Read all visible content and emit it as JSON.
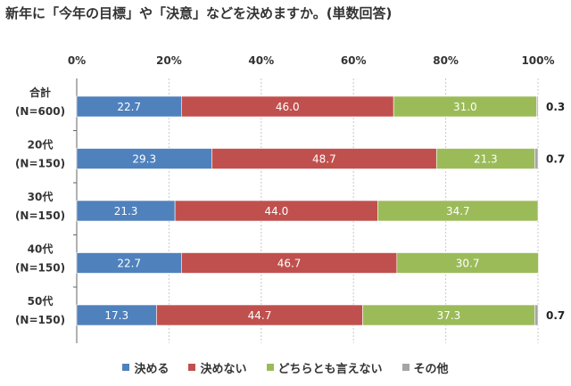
{
  "chart_data": {
    "type": "bar",
    "orientation": "horizontal",
    "stacked": true,
    "percent": true,
    "title": "新年に「今年の目標」や「決意」などを決めますか。(単数回答)",
    "xlim": [
      0,
      100
    ],
    "x_ticks": [
      "0%",
      "20%",
      "40%",
      "60%",
      "80%",
      "100%"
    ],
    "categories": [
      {
        "line1": "合計",
        "line2": "(N=600)"
      },
      {
        "line1": "20代",
        "line2": "(N=150)"
      },
      {
        "line1": "30代",
        "line2": "(N=150)"
      },
      {
        "line1": "40代",
        "line2": "(N=150)"
      },
      {
        "line1": "50代",
        "line2": "(N=150)"
      }
    ],
    "series": [
      {
        "name": "決める",
        "color": "#4f81bd",
        "values": [
          22.7,
          29.3,
          21.3,
          22.7,
          17.3
        ],
        "labels": [
          "22.7",
          "29.3",
          "21.3",
          "22.7",
          "17.3"
        ]
      },
      {
        "name": "決めない",
        "color": "#c0504d",
        "values": [
          46.0,
          48.7,
          44.0,
          46.7,
          44.7
        ],
        "labels": [
          "46.0",
          "48.7",
          "44.0",
          "46.7",
          "44.7"
        ]
      },
      {
        "name": "どちらとも言えない",
        "color": "#9bbb59",
        "values": [
          31.0,
          21.3,
          34.7,
          30.7,
          37.3
        ],
        "labels": [
          "31.0",
          "21.3",
          "34.7",
          "30.7",
          "37.3"
        ]
      },
      {
        "name": "その他",
        "color": "#a5a5a5",
        "values": [
          0.3,
          0.7,
          0.0,
          0.0,
          0.7
        ],
        "labels": [
          "0.3",
          "0.7",
          "",
          "",
          "0.7"
        ]
      }
    ]
  }
}
